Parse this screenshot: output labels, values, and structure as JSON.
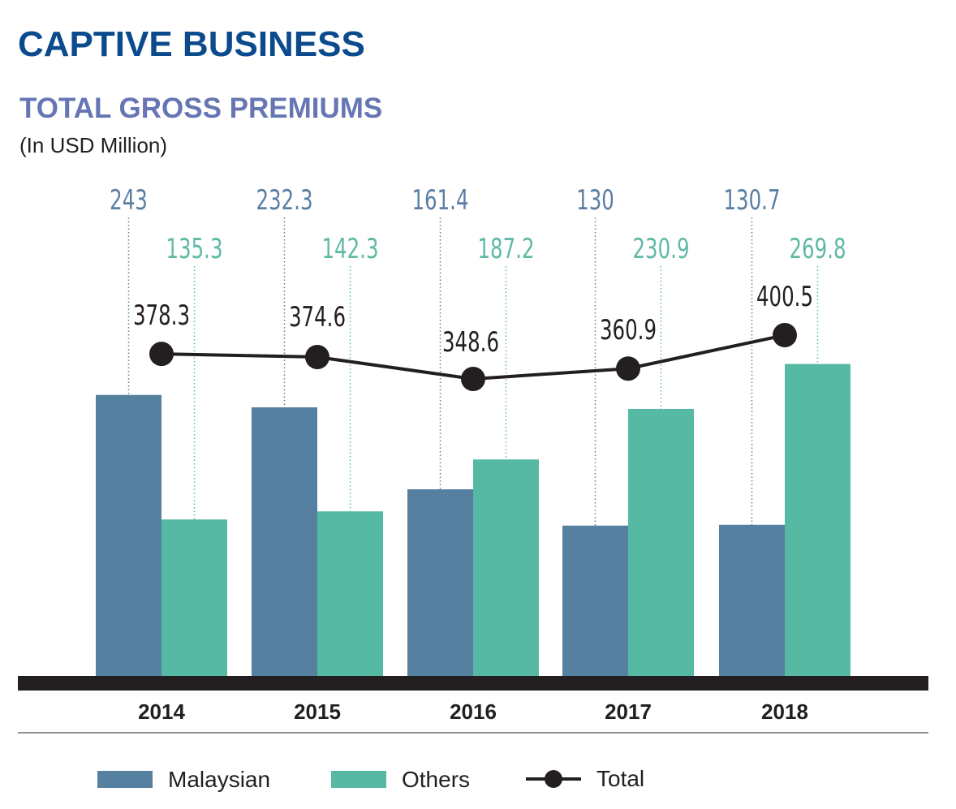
{
  "heading": "CAPTIVE BUSINESS",
  "chart_data": {
    "type": "bar",
    "title": "TOTAL GROSS PREMIUMS",
    "subtitle": "(In USD Million)",
    "categories": [
      "2014",
      "2015",
      "2016",
      "2017",
      "2018"
    ],
    "series": [
      {
        "name": "Malaysian",
        "type": "bar",
        "color": "#5680a0",
        "values": [
          243,
          232.3,
          161.4,
          130,
          130.7
        ],
        "labels": [
          "243",
          "232.3",
          "161.4",
          "130",
          "130.7"
        ]
      },
      {
        "name": "Others",
        "type": "bar",
        "color": "#55b9a3",
        "values": [
          135.3,
          142.3,
          187.2,
          230.9,
          269.8
        ],
        "labels": [
          "135.3",
          "142.3",
          "187.2",
          "230.9",
          "269.8"
        ]
      },
      {
        "name": "Total",
        "type": "line",
        "color": "#231f20",
        "values": [
          378.3,
          374.6,
          348.6,
          360.9,
          400.5
        ],
        "labels": [
          "378.3",
          "374.6",
          "348.6",
          "360.9",
          "400.5"
        ]
      }
    ],
    "legend": [
      "Malaysian",
      "Others",
      "Total"
    ],
    "legend_position": "bottom",
    "grid": false,
    "colors": {
      "heading": "#0b4a8c",
      "title": "#6676b4",
      "malaysian_label": "#5a7fa3",
      "others_label": "#5fb9a6",
      "axis": "#231f20"
    }
  }
}
